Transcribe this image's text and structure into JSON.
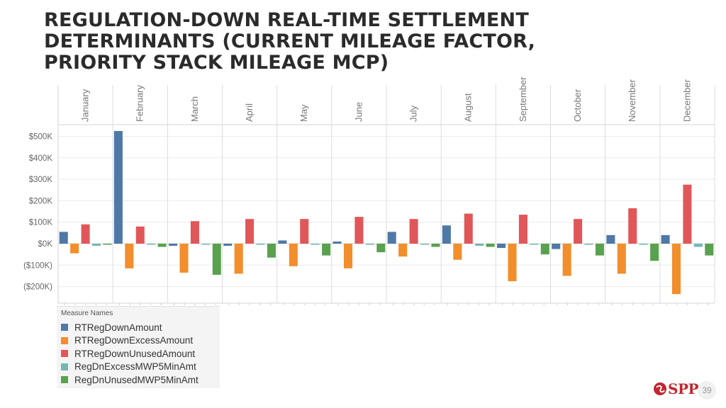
{
  "title": {
    "line1": "REGULATION-DOWN REAL-TIME SETTLEMENT",
    "line2": "DETERMINANTS (CURRENT MILEAGE FACTOR,",
    "line3": "PRIORITY STACK MILEAGE MCP)"
  },
  "chart_data": {
    "type": "bar",
    "title": "",
    "categories": [
      "January",
      "February",
      "March",
      "April",
      "May",
      "June",
      "July",
      "August",
      "September",
      "October",
      "November",
      "December"
    ],
    "ylim": [
      -280000,
      560000
    ],
    "yticks": [
      {
        "value": 500000,
        "label": "$500K"
      },
      {
        "value": 400000,
        "label": "$400K"
      },
      {
        "value": 300000,
        "label": "$300K"
      },
      {
        "value": 200000,
        "label": "$200K"
      },
      {
        "value": 100000,
        "label": "$100K"
      },
      {
        "value": 0,
        "label": "$0K"
      },
      {
        "value": -100000,
        "label": "($100K)"
      },
      {
        "value": -200000,
        "label": "($200K)"
      }
    ],
    "grid": true,
    "legend_title": "Measure Names",
    "legend_position": "bottom-left",
    "series": [
      {
        "name": "RTRegDownAmount",
        "color": "#4e79a7",
        "values": [
          55000,
          525000,
          -10000,
          -10000,
          15000,
          10000,
          55000,
          85000,
          -20000,
          -25000,
          40000,
          40000
        ]
      },
      {
        "name": "RTRegDownExcessAmount",
        "color": "#f28e2b",
        "values": [
          -45000,
          -115000,
          -135000,
          -140000,
          -105000,
          -115000,
          -60000,
          -75000,
          -175000,
          -150000,
          -140000,
          -235000
        ]
      },
      {
        "name": "RTRegDownUnusedAmount",
        "color": "#e15759",
        "values": [
          90000,
          80000,
          105000,
          115000,
          115000,
          125000,
          115000,
          140000,
          135000,
          115000,
          165000,
          275000
        ]
      },
      {
        "name": "RegDnExcessMWP5MinAmt",
        "color": "#76b7b2",
        "values": [
          -10000,
          -5000,
          -5000,
          -5000,
          -5000,
          -5000,
          -5000,
          -10000,
          -5000,
          -5000,
          -5000,
          -15000
        ]
      },
      {
        "name": "RegDnUnusedMWP5MinAmt",
        "color": "#59a14f",
        "values": [
          -5000,
          -15000,
          -145000,
          -65000,
          -55000,
          -40000,
          -15000,
          -15000,
          -50000,
          -55000,
          -80000,
          -55000
        ]
      }
    ]
  },
  "logo": {
    "text": "SPP"
  },
  "page_number": "39"
}
